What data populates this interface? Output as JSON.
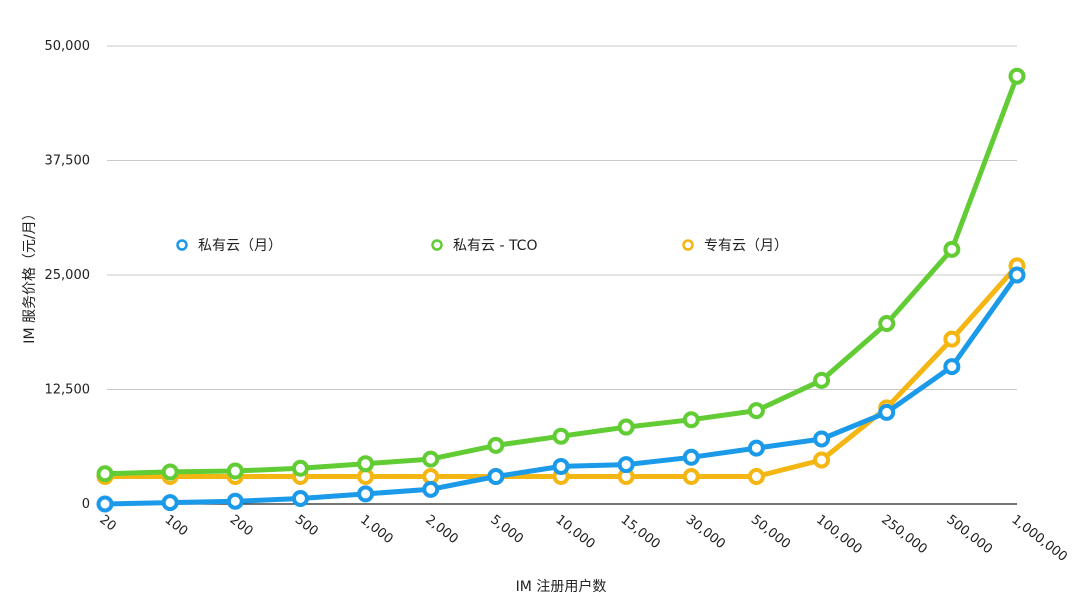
{
  "chart_data": {
    "type": "line",
    "title": "",
    "xlabel": "IM 注册用户数",
    "ylabel": "IM 服务价格（元/月）",
    "categories": [
      "20",
      "100",
      "200",
      "500",
      "1,000",
      "2,000",
      "5,000",
      "10,000",
      "15,000",
      "30,000",
      "50,000",
      "100,000",
      "250,000",
      "500,000",
      "1,000,000"
    ],
    "ylim": [
      0,
      50000
    ],
    "yticks": [
      {
        "value": 0,
        "label": "0"
      },
      {
        "value": 12500,
        "label": "12,500"
      },
      {
        "value": 25000,
        "label": "25,000"
      },
      {
        "value": 37500,
        "label": "37,500"
      },
      {
        "value": 50000,
        "label": "50,000"
      }
    ],
    "grid": true,
    "legend_position": "middle-left",
    "series": [
      {
        "name": "私有云（月）",
        "color": "#1a9ae8",
        "values": [
          0,
          150,
          300,
          600,
          1100,
          1600,
          3000,
          4100,
          4300,
          5100,
          6100,
          7100,
          10000,
          15000,
          25000
        ]
      },
      {
        "name": "私有云 - TCO",
        "color": "#62cc35",
        "values": [
          3300,
          3500,
          3600,
          3900,
          4400,
          4900,
          6400,
          7400,
          8400,
          9200,
          10200,
          13500,
          19700,
          27800,
          46700
        ]
      },
      {
        "name": "专有云（月）",
        "color": "#f4b612",
        "values": [
          3000,
          3000,
          3000,
          3000,
          3000,
          3000,
          3000,
          3000,
          3000,
          3000,
          3000,
          4800,
          10500,
          18000,
          26000
        ]
      }
    ],
    "draw_order": [
      2,
      0,
      1
    ]
  }
}
